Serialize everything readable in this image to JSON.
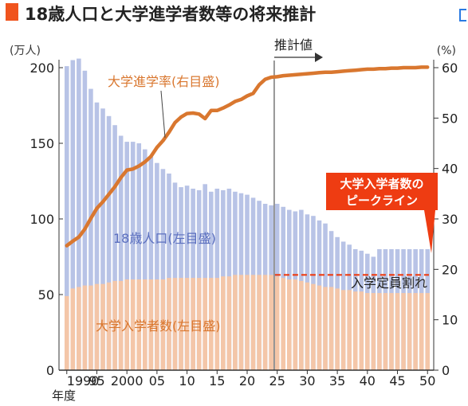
{
  "title": "18歳人口と大学進学者数等の将来推計",
  "colors": {
    "accent": "#f0541e",
    "population_bar": "#b8c3e6",
    "enrollment_bar": "#f4c6a8",
    "rate_line": "#d9772f",
    "label_blue": "#5b6fbf",
    "label_orange": "#d9772f",
    "callout_bg": "#ee3c12",
    "capacity_line": "#ee3c12"
  },
  "chart_data": {
    "type": "bar",
    "left_axis_unit": "(万人)",
    "right_axis_unit": "(%)",
    "left_ylim": [
      0,
      200
    ],
    "right_ylim": [
      0,
      60
    ],
    "left_ticks": [
      "0",
      "50",
      "100",
      "150",
      "200"
    ],
    "right_ticks": [
      "0",
      "10",
      "20",
      "30",
      "40",
      "50",
      "60"
    ],
    "x_tick_labels": [
      {
        "year": 1990,
        "label": "1990"
      },
      {
        "year": 1995,
        "label": "95"
      },
      {
        "year": 2000,
        "label": "2000"
      },
      {
        "year": 2005,
        "label": "05"
      },
      {
        "year": 2010,
        "label": "10"
      },
      {
        "year": 2015,
        "label": "15"
      },
      {
        "year": 2020,
        "label": "20"
      },
      {
        "year": 2025,
        "label": "25"
      },
      {
        "year": 2030,
        "label": "30"
      },
      {
        "year": 2035,
        "label": "35"
      },
      {
        "year": 2040,
        "label": "40"
      },
      {
        "year": 2045,
        "label": "45"
      },
      {
        "year": 2050,
        "label": "50"
      }
    ],
    "x_axis_unit": "年度",
    "years": [
      1990,
      1991,
      1992,
      1993,
      1994,
      1995,
      1996,
      1997,
      1998,
      1999,
      2000,
      2001,
      2002,
      2003,
      2004,
      2005,
      2006,
      2007,
      2008,
      2009,
      2010,
      2011,
      2012,
      2013,
      2014,
      2015,
      2016,
      2017,
      2018,
      2019,
      2020,
      2021,
      2022,
      2023,
      2024,
      2025,
      2026,
      2027,
      2028,
      2029,
      2030,
      2031,
      2032,
      2033,
      2034,
      2035,
      2036,
      2037,
      2038,
      2039,
      2040,
      2041,
      2042,
      2043,
      2044,
      2045,
      2046,
      2047,
      2048,
      2049,
      2050
    ],
    "series": [
      {
        "name": "18歳人口(左目盛)",
        "axis": "left",
        "values": [
          201,
          205,
          206,
          198,
          186,
          177,
          173,
          168,
          162,
          155,
          151,
          151,
          150,
          146,
          141,
          137,
          133,
          130,
          124,
          121,
          122,
          120,
          119,
          123,
          118,
          120,
          119,
          120,
          118,
          117,
          116,
          114,
          112,
          110,
          109,
          110,
          108,
          106,
          105,
          106,
          103,
          102,
          99,
          97,
          92,
          88,
          85,
          83,
          80,
          79,
          77,
          75,
          80,
          80,
          80,
          80,
          80,
          80,
          80,
          80,
          80
        ]
      },
      {
        "name": "大学入学者数(左目盛)",
        "axis": "left",
        "values": [
          49,
          54,
          55,
          56,
          56,
          57,
          57,
          58,
          59,
          59,
          60,
          60,
          60,
          60,
          60,
          60,
          60,
          61,
          61,
          61,
          61,
          61,
          61,
          61,
          61,
          61,
          62,
          62,
          63,
          63,
          63,
          63,
          63,
          63,
          63,
          62,
          61,
          60,
          60,
          59,
          58,
          57,
          56,
          55,
          55,
          54,
          53,
          53,
          52,
          52,
          51,
          51,
          51,
          51,
          51,
          51,
          51,
          51,
          51,
          51,
          51
        ]
      },
      {
        "name": "大学進学率(右目盛)",
        "axis": "right",
        "type": "line",
        "values": [
          24.7,
          25.6,
          26.4,
          28.0,
          30.1,
          32.1,
          33.4,
          34.9,
          36.4,
          38.2,
          39.7,
          39.9,
          40.5,
          41.3,
          42.4,
          44.2,
          45.5,
          47.2,
          49.1,
          50.2,
          50.9,
          51.0,
          50.8,
          49.9,
          51.5,
          51.5,
          52.0,
          52.6,
          53.3,
          53.7,
          54.4,
          54.9,
          56.6,
          57.7,
          58.1,
          58.2,
          58.4,
          58.5,
          58.6,
          58.7,
          58.8,
          58.9,
          59.0,
          59.1,
          59.1,
          59.2,
          59.3,
          59.4,
          59.5,
          59.6,
          59.7,
          59.7,
          59.8,
          59.8,
          59.9,
          59.9,
          60.0,
          60.0,
          60.0,
          60.1,
          60.1
        ]
      }
    ],
    "projection_start_year": 2024,
    "projection_label": "推計値",
    "capacity_line": {
      "label": "入学定員割れ",
      "value": 63,
      "start_year": 2025
    },
    "labels": {
      "rate": "大学進学率(右目盛)",
      "population": "18歳人口(左目盛)",
      "enrollment": "大学入学者数(左目盛)"
    },
    "callout": {
      "line1": "大学入学者数の",
      "line2": "ピークライン"
    }
  }
}
